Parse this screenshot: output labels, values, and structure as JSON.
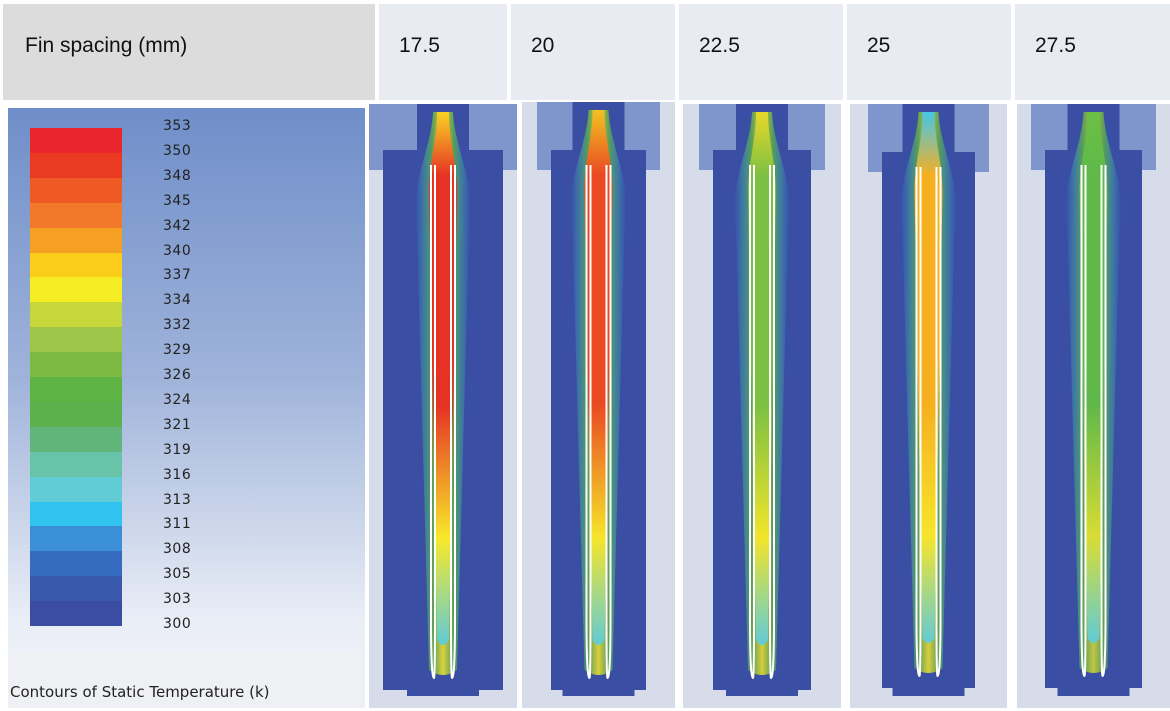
{
  "header": {
    "row_label": "Fin spacing (mm)",
    "spacings": [
      "17.5",
      "20",
      "22.5",
      "25",
      "27.5"
    ]
  },
  "legend": {
    "values": [
      "353",
      "350",
      "348",
      "345",
      "342",
      "340",
      "337",
      "334",
      "332",
      "329",
      "326",
      "324",
      "321",
      "319",
      "316",
      "313",
      "311",
      "308",
      "305",
      "303",
      "300"
    ],
    "colors": [
      "#e8262b",
      "#ea3a22",
      "#ef5a24",
      "#f2792a",
      "#f6a023",
      "#fbcd18",
      "#f6ec24",
      "#c6d63b",
      "#9ec547",
      "#7cba43",
      "#5db444",
      "#5cb14c",
      "#62b57a",
      "#67c4a8",
      "#61cbd6",
      "#31c3ef",
      "#3a8fd6",
      "#356cc0",
      "#3a59ad",
      "#3a4da2"
    ],
    "caption": "Contours of Static Temperature (k)"
  },
  "panels": [
    {
      "spacing": "17.5",
      "core_color": "#e63125",
      "glow_color": "#f7e92a",
      "top_color": "#f8d323"
    },
    {
      "spacing": "20",
      "core_color": "#ea4a22",
      "glow_color": "#f5e52a",
      "top_color": "#f2c323"
    },
    {
      "spacing": "22.5",
      "core_color": "#7cc043",
      "glow_color": "#f2e52a",
      "top_color": "#e9d82a"
    },
    {
      "spacing": "25",
      "core_color": "#f6b01f",
      "glow_color": "#f6e52a",
      "top_color": "#44c6ea"
    },
    {
      "spacing": "27.5",
      "core_color": "#5fb84a",
      "glow_color": "#d9dc33",
      "top_color": "#6cc044"
    }
  ]
}
